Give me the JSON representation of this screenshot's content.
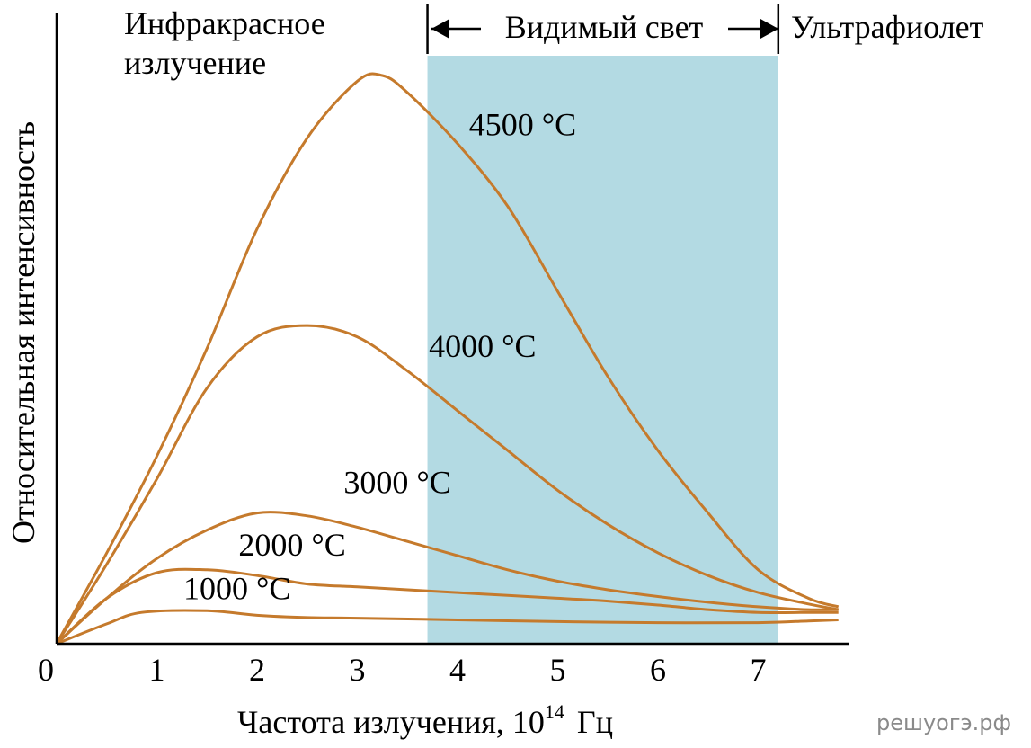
{
  "chart_data": {
    "type": "line",
    "xlabel": "Частота излучения, 10",
    "xlabel_exp": "14",
    "xlabel_unit": "Гц",
    "ylabel": "Относительная интенсивность",
    "xlim": [
      0,
      7.8
    ],
    "ylim": [
      0,
      1
    ],
    "x_ticks": [
      "0",
      "1",
      "2",
      "3",
      "4",
      "5",
      "6",
      "7"
    ],
    "x_tick_values": [
      0,
      1,
      2,
      3,
      4,
      5,
      6,
      7
    ],
    "region_labels": {
      "infrared_line1": "Инфракрасное",
      "infrared_line2": "излучение",
      "visible": "Видимый свет",
      "ultraviolet": "Ультрафиолет"
    },
    "visible_band": [
      3.7,
      7.2
    ],
    "band_color": "#b3dae3",
    "curve_color": "#c57a2c",
    "series": [
      {
        "name": "4500 °C",
        "label_at": [
          4.65,
          0.895
        ],
        "points": [
          [
            0,
            0
          ],
          [
            0.5,
            0.16
          ],
          [
            1,
            0.33
          ],
          [
            1.5,
            0.52
          ],
          [
            2,
            0.73
          ],
          [
            2.5,
            0.89
          ],
          [
            3,
            0.99
          ],
          [
            3.25,
            1.0
          ],
          [
            3.5,
            0.97
          ],
          [
            4,
            0.88
          ],
          [
            4.5,
            0.77
          ],
          [
            5,
            0.62
          ],
          [
            5.5,
            0.47
          ],
          [
            6,
            0.34
          ],
          [
            6.5,
            0.23
          ],
          [
            7,
            0.13
          ],
          [
            7.5,
            0.08
          ],
          [
            7.8,
            0.065
          ]
        ]
      },
      {
        "name": "4000 °C",
        "label_at": [
          4.25,
          0.505
        ],
        "points": [
          [
            0,
            0
          ],
          [
            0.5,
            0.14
          ],
          [
            1,
            0.29
          ],
          [
            1.5,
            0.45
          ],
          [
            2,
            0.54
          ],
          [
            2.5,
            0.56
          ],
          [
            3,
            0.54
          ],
          [
            3.5,
            0.48
          ],
          [
            4,
            0.41
          ],
          [
            4.5,
            0.34
          ],
          [
            5,
            0.27
          ],
          [
            5.5,
            0.21
          ],
          [
            6,
            0.16
          ],
          [
            6.5,
            0.12
          ],
          [
            7,
            0.09
          ],
          [
            7.5,
            0.07
          ],
          [
            7.8,
            0.06
          ]
        ]
      },
      {
        "name": "3000 °C",
        "label_at": [
          3.4,
          0.265
        ],
        "points": [
          [
            0,
            0
          ],
          [
            0.5,
            0.08
          ],
          [
            1,
            0.15
          ],
          [
            1.5,
            0.2
          ],
          [
            2,
            0.23
          ],
          [
            2.5,
            0.225
          ],
          [
            3,
            0.205
          ],
          [
            3.5,
            0.18
          ],
          [
            4,
            0.155
          ],
          [
            4.5,
            0.13
          ],
          [
            5,
            0.11
          ],
          [
            5.5,
            0.095
          ],
          [
            6,
            0.083
          ],
          [
            6.5,
            0.073
          ],
          [
            7,
            0.065
          ],
          [
            7.5,
            0.06
          ],
          [
            7.8,
            0.06
          ]
        ]
      },
      {
        "name": "2000 °C",
        "label_at": [
          2.35,
          0.155
        ],
        "points": [
          [
            0,
            0
          ],
          [
            0.5,
            0.08
          ],
          [
            1,
            0.125
          ],
          [
            1.5,
            0.13
          ],
          [
            2,
            0.12
          ],
          [
            2.5,
            0.105
          ],
          [
            3,
            0.1
          ],
          [
            3.5,
            0.095
          ],
          [
            4,
            0.09
          ],
          [
            4.5,
            0.085
          ],
          [
            5,
            0.08
          ],
          [
            5.5,
            0.075
          ],
          [
            6,
            0.068
          ],
          [
            6.5,
            0.06
          ],
          [
            7,
            0.055
          ],
          [
            7.5,
            0.055
          ],
          [
            7.8,
            0.055
          ]
        ]
      },
      {
        "name": "1000 °C",
        "label_at": [
          1.8,
          0.078
        ],
        "points": [
          [
            0,
            0
          ],
          [
            0.5,
            0.035
          ],
          [
            0.85,
            0.055
          ],
          [
            1.5,
            0.058
          ],
          [
            2,
            0.05
          ],
          [
            2.5,
            0.046
          ],
          [
            3,
            0.045
          ],
          [
            4,
            0.042
          ],
          [
            5,
            0.039
          ],
          [
            6,
            0.037
          ],
          [
            7,
            0.037
          ],
          [
            7.5,
            0.04
          ],
          [
            7.8,
            0.042
          ]
        ]
      }
    ]
  },
  "watermark": "решуогэ.рф"
}
